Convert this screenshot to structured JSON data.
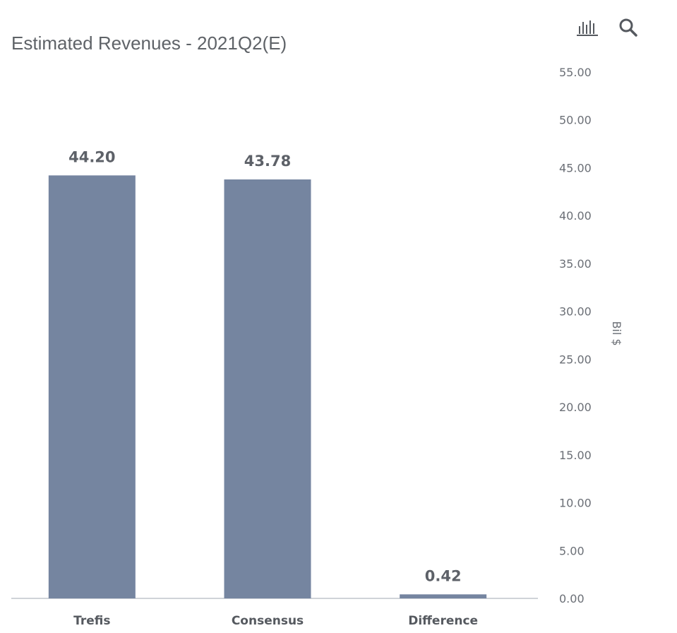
{
  "title": "Estimated Revenues - 2021Q2(E)",
  "toolbar": {
    "chart_icon": "bar-chart-icon",
    "search_icon": "search-icon"
  },
  "colors": {
    "bar": "#7585a0",
    "text": "#5d6168",
    "baseline": "#cfd3d8"
  },
  "chart_data": {
    "type": "bar",
    "title": "Estimated Revenues - 2021Q2(E)",
    "categories": [
      "Trefis",
      "Consensus",
      "Difference"
    ],
    "values": [
      44.2,
      43.78,
      0.42
    ],
    "data_labels": [
      "44.20",
      "43.78",
      "0.42"
    ],
    "xlabel": "",
    "ylabel": "Bil $",
    "y_axis_side": "right",
    "ylim": [
      0,
      55
    ],
    "yticks": [
      0,
      5,
      10,
      15,
      20,
      25,
      30,
      35,
      40,
      45,
      50,
      55
    ],
    "ytick_labels": [
      "0.00",
      "5.00",
      "10.00",
      "15.00",
      "20.00",
      "25.00",
      "30.00",
      "35.00",
      "40.00",
      "45.00",
      "50.00",
      "55.00"
    ],
    "grid": false,
    "legend": "none"
  }
}
